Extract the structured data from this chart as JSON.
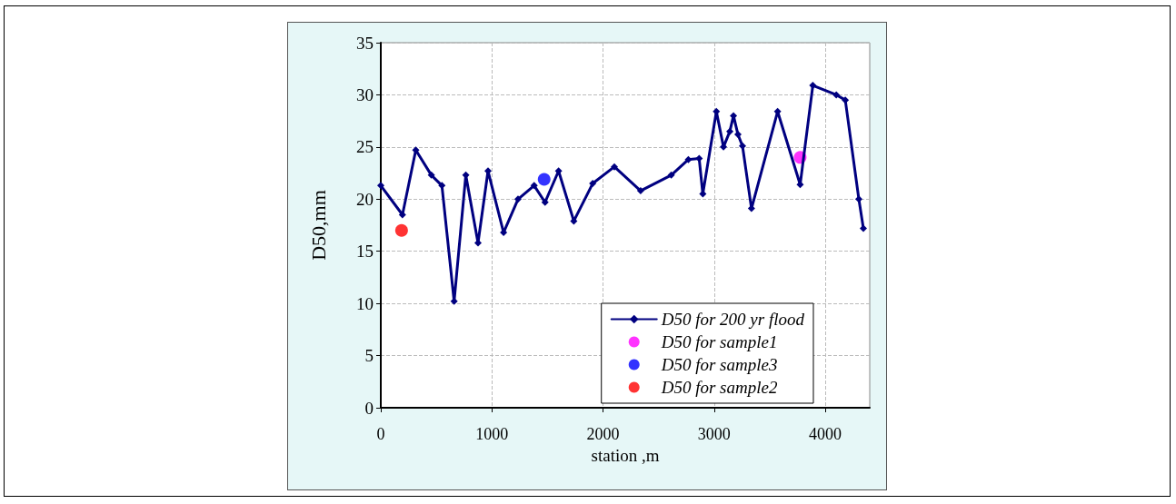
{
  "chart_data": {
    "type": "line",
    "xlabel": "station ,m",
    "ylabel": "D50,mm",
    "xlim": [
      0,
      4400
    ],
    "xticks": [
      0,
      1000,
      2000,
      3000,
      4000
    ],
    "ylim": [
      0,
      35
    ],
    "yticks": [
      0,
      5,
      10,
      15,
      20,
      25,
      30,
      35
    ],
    "grid": true,
    "legend": "bottom right",
    "series": [
      {
        "name": "D50 for 200 yr flood",
        "color": "#000080",
        "marker": "diamond",
        "line_style": "solid",
        "x": [
          0,
          195,
          315,
          455,
          550,
          660,
          765,
          875,
          965,
          1105,
          1235,
          1380,
          1478,
          1600,
          1737,
          1907,
          2102,
          2338,
          2614,
          2768,
          2865,
          2898,
          3020,
          3084,
          3141,
          3174,
          3214,
          3255,
          3336,
          3571,
          3774,
          3888,
          4099,
          4180,
          4302,
          4343
        ],
        "values": [
          21.3,
          18.5,
          24.7,
          22.3,
          21.3,
          10.2,
          22.3,
          15.8,
          22.7,
          16.8,
          20.0,
          21.3,
          19.7,
          22.7,
          17.9,
          21.5,
          23.1,
          20.8,
          22.3,
          23.8,
          23.9,
          20.5,
          28.4,
          25.0,
          26.5,
          28.0,
          26.2,
          25.1,
          19.1,
          28.4,
          21.4,
          30.9,
          30.0,
          29.5,
          20.0,
          17.2
        ]
      },
      {
        "name": "D50 for sample1",
        "type": "scatter",
        "color": "#ff00ff",
        "marker": "circle",
        "x": [
          3774
        ],
        "values": [
          24.0
        ]
      },
      {
        "name": "D50 for sample3",
        "type": "scatter",
        "color": "#0000ff",
        "marker": "circle",
        "x": [
          1470
        ],
        "values": [
          21.9
        ]
      },
      {
        "name": "D50 for sample2",
        "type": "scatter",
        "color": "#ff0000",
        "marker": "circle",
        "x": [
          187
        ],
        "values": [
          17.0
        ]
      }
    ]
  }
}
